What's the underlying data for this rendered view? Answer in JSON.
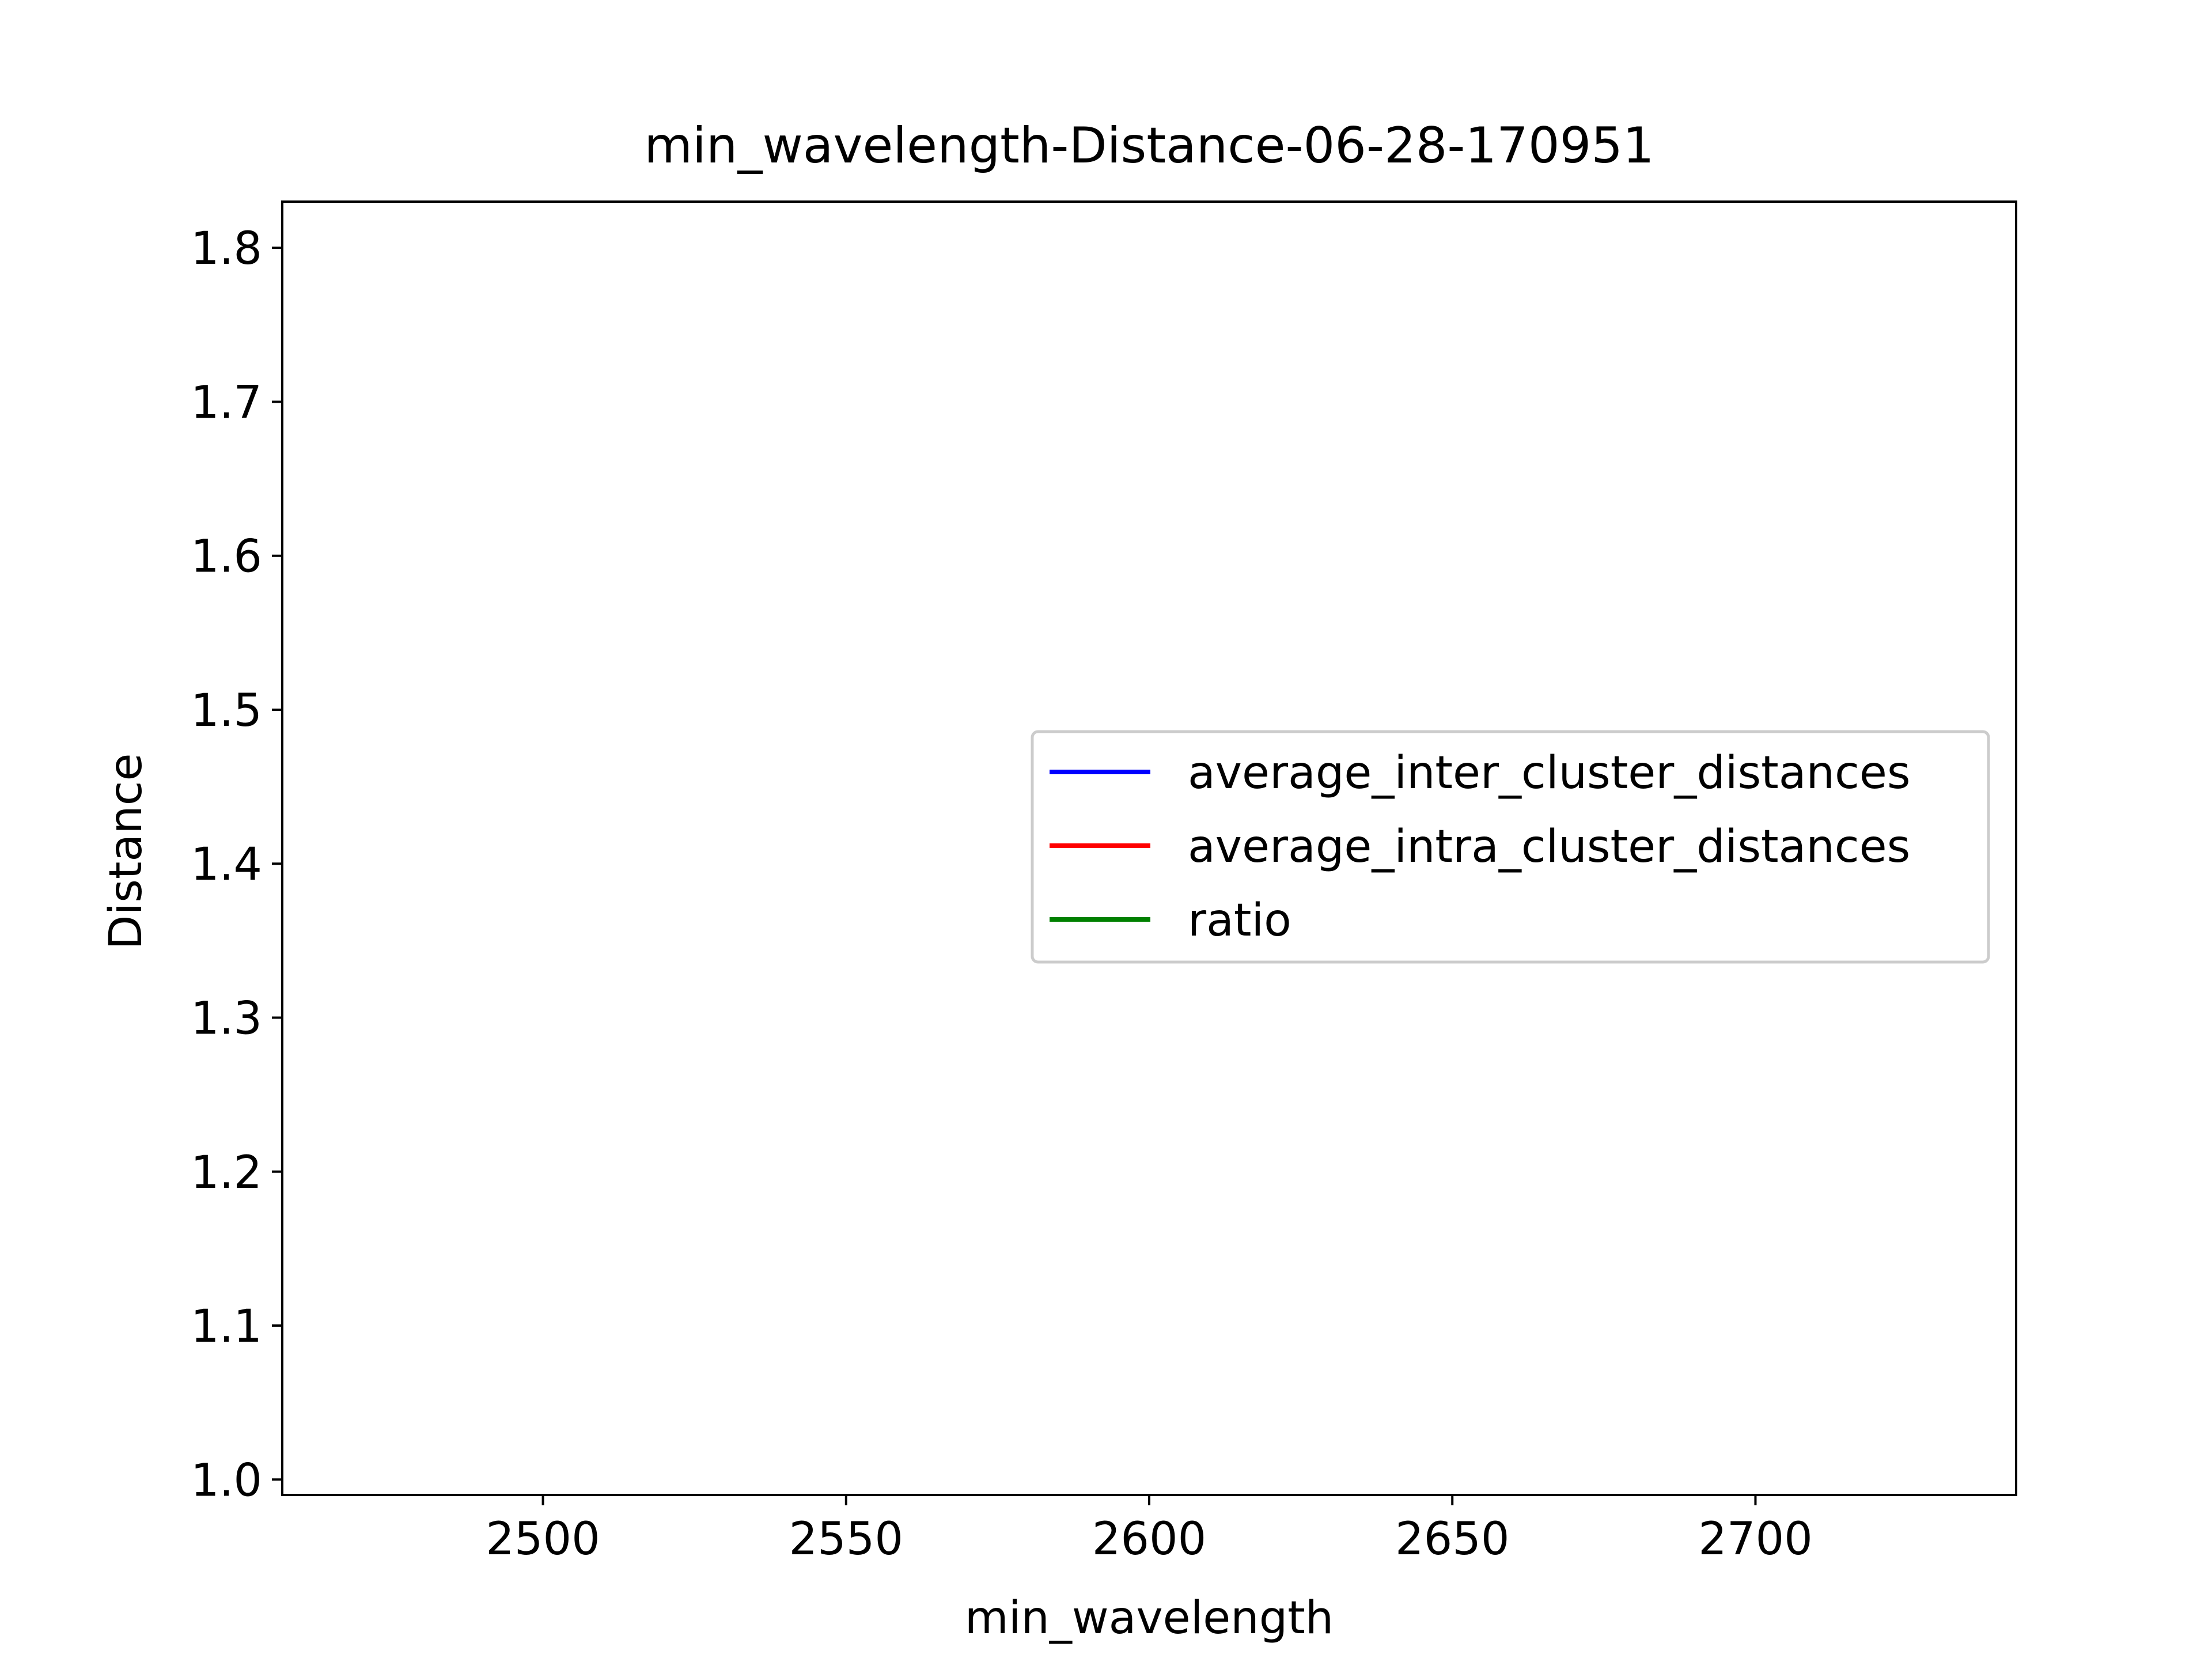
{
  "chart_data": {
    "type": "line",
    "title": "min_wavelength-Distance-06-28-170951",
    "xlabel": "min_wavelength",
    "ylabel": "Distance",
    "xlim": [
      2457,
      2743
    ],
    "ylim": [
      0.99,
      1.83
    ],
    "xticks": [
      2500,
      2550,
      2600,
      2650,
      2700
    ],
    "yticks": [
      1.0,
      1.1,
      1.2,
      1.3,
      1.4,
      1.5,
      1.6,
      1.7,
      1.8
    ],
    "ytick_labels": [
      "1.0",
      "1.1",
      "1.2",
      "1.3",
      "1.4",
      "1.5",
      "1.6",
      "1.7",
      "1.8"
    ],
    "grid": false,
    "legend_position": "center-right",
    "series": [
      {
        "name": "average_inter_cluster_distances",
        "color": "#0000ff",
        "x": [],
        "y": []
      },
      {
        "name": "average_intra_cluster_distances",
        "color": "#ff0000",
        "x": [],
        "y": []
      },
      {
        "name": "ratio",
        "color": "#008000",
        "x": [],
        "y": []
      }
    ]
  }
}
